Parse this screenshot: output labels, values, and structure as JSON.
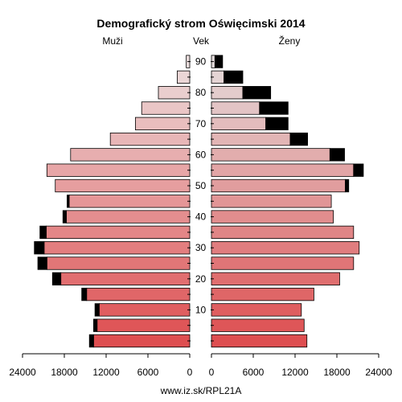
{
  "chart_data": {
    "type": "bar",
    "title": "Demografický strom Oświęcimski 2014",
    "left_label": "Muži",
    "center_label": "Vek",
    "right_label": "Ženy",
    "footer": "www.iz.sk/RPL21A",
    "x_max": 24000,
    "x_ticks": [
      24000,
      18000,
      12000,
      6000,
      0
    ],
    "x_ticks_right": [
      0,
      6000,
      12000,
      18000,
      24000
    ],
    "age_tick_labels": [
      "10",
      "20",
      "30",
      "40",
      "50",
      "60",
      "70",
      "80",
      "90"
    ],
    "age_groups": [
      "0-4",
      "5-9",
      "10-14",
      "15-19",
      "20-24",
      "25-29",
      "30-34",
      "35-39",
      "40-44",
      "45-49",
      "50-54",
      "55-59",
      "60-64",
      "65-69",
      "70-74",
      "75-79",
      "80-84",
      "85-89",
      "90+"
    ],
    "series": [
      {
        "name": "Muži",
        "values": [
          13800,
          13300,
          13000,
          14800,
          18500,
          20500,
          20900,
          20600,
          17700,
          17300,
          19300,
          20500,
          17100,
          11400,
          7800,
          6900,
          4500,
          1800,
          500
        ],
        "excess": [
          600,
          500,
          600,
          700,
          1200,
          1300,
          1400,
          900,
          500,
          300,
          0,
          0,
          0,
          0,
          0,
          0,
          0,
          0,
          0
        ]
      },
      {
        "name": "Ženy",
        "values": [
          13700,
          13300,
          12900,
          14700,
          18400,
          20400,
          21200,
          20400,
          17500,
          17200,
          19200,
          20400,
          17000,
          11300,
          7800,
          6900,
          4500,
          1800,
          500
        ],
        "excess": [
          0,
          0,
          0,
          0,
          0,
          0,
          0,
          0,
          0,
          0,
          500,
          1400,
          2100,
          2500,
          3200,
          4100,
          4000,
          2700,
          1100
        ]
      }
    ]
  }
}
